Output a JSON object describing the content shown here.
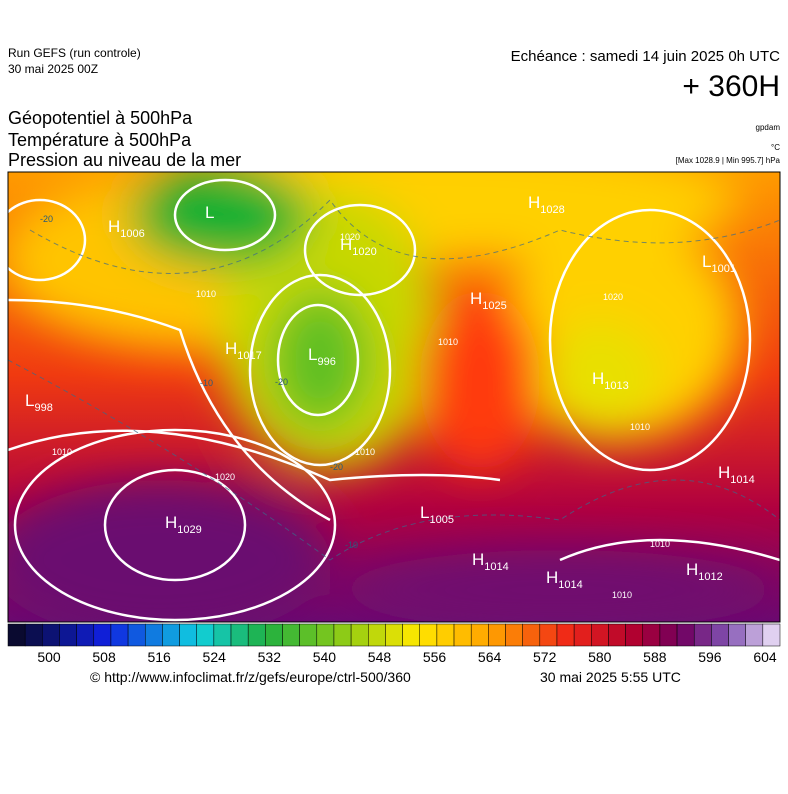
{
  "header": {
    "run": "Run GEFS (run controle)",
    "run_date": "30 mai 2025 00Z",
    "valid": "Echéance : samedi 14 juin 2025 0h UTC",
    "lead": "+ 360H",
    "fields": [
      "Géopotentiel à 500hPa",
      "Température à 500hPa",
      "Pression au niveau de la mer"
    ],
    "units": [
      "gpdam",
      "°C",
      "[Max 1028.9 | Min 995.7] hPa"
    ]
  },
  "centers": [
    {
      "letter": "H",
      "value": 1006
    },
    {
      "letter": "L",
      "value": null
    },
    {
      "letter": "H",
      "value": 1020
    },
    {
      "letter": "H",
      "value": 1028
    },
    {
      "letter": "L",
      "value": 1001
    },
    {
      "letter": "H",
      "value": 1025
    },
    {
      "letter": "H",
      "value": 1017
    },
    {
      "letter": "L",
      "value": 996
    },
    {
      "letter": "L",
      "value": 998
    },
    {
      "letter": "H",
      "value": 1013
    },
    {
      "letter": "H",
      "value": 1029
    },
    {
      "letter": "L",
      "value": 1005
    },
    {
      "letter": "H",
      "value": 1014
    },
    {
      "letter": "H",
      "value": 1014
    },
    {
      "letter": "H",
      "value": 1014
    },
    {
      "letter": "H",
      "value": 1012
    }
  ],
  "contour_labels": [
    1010,
    1020,
    1020,
    1010,
    1010,
    1020,
    1010,
    1010,
    1010,
    1010,
    -20,
    -20,
    -20,
    -10,
    -10
  ],
  "colorbar": {
    "labels": [
      500,
      508,
      516,
      524,
      532,
      540,
      548,
      556,
      564,
      572,
      580,
      588,
      596,
      604
    ]
  },
  "footer": {
    "source": "© http://www.infoclimat.fr/z/gefs/europe/ctrl-500/360",
    "made": "30 mai 2025  5:55 UTC"
  }
}
